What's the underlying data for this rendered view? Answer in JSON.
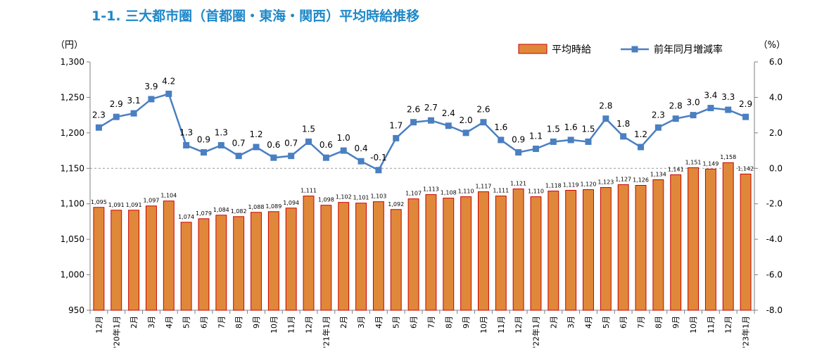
{
  "title": "1-1. 三大都市圏（首都圏・東海・関西）平均時給推移",
  "chart_data": {
    "type": "bar",
    "title": "1-1. 三大都市圏（首都圏・東海・関西）平均時給推移",
    "y_unit": "（円）",
    "y2_unit": "（%）",
    "ylim": [
      950,
      1300
    ],
    "y_ticks": [
      "950",
      "1,000",
      "1,050",
      "1,100",
      "1,150",
      "1,200",
      "1,250",
      "1,300"
    ],
    "y2lim": [
      -8.0,
      6.0
    ],
    "y2_ticks": [
      "-8.0",
      "-6.0",
      "-4.0",
      "-2.0",
      "0.0",
      "2.0",
      "4.0",
      "6.0"
    ],
    "categories": [
      "12月",
      "'20年1月",
      "2月",
      "3月",
      "4月",
      "5月",
      "6月",
      "7月",
      "8月",
      "9月",
      "10月",
      "11月",
      "12月",
      "'21年1月",
      "2月",
      "3月",
      "4月",
      "5月",
      "6月",
      "7月",
      "8月",
      "9月",
      "10月",
      "11月",
      "12月",
      "'22年1月",
      "2月",
      "3月",
      "4月",
      "5月",
      "6月",
      "7月",
      "8月",
      "9月",
      "10月",
      "11月",
      "12月",
      "'23年1月"
    ],
    "series": [
      {
        "name": "平均時給",
        "type": "bar",
        "color": "#e0883a",
        "edge_color": "#cc0000",
        "values": [
          1095,
          1091,
          1091,
          1097,
          1104,
          1074,
          1079,
          1084,
          1082,
          1088,
          1089,
          1094,
          1111,
          1098,
          1102,
          1101,
          1103,
          1092,
          1107,
          1113,
          1108,
          1110,
          1117,
          1111,
          1121,
          1110,
          1118,
          1119,
          1120,
          1123,
          1127,
          1126,
          1134,
          1141,
          1151,
          1149,
          1158,
          1142
        ],
        "labels": [
          "1,095",
          "1,091",
          "1,091",
          "1,097",
          "1,104",
          "1,074",
          "1,079",
          "1,084",
          "1,082",
          "1,088",
          "1,089",
          "1,094",
          "1,111",
          "1,098",
          "1,102",
          "1,101",
          "1,103",
          "1,092",
          "1,107",
          "1,113",
          "1,108",
          "1,110",
          "1,117",
          "1,111",
          "1,121",
          "1,110",
          "1,118",
          "1,119",
          "1,120",
          "1,123",
          "1,127",
          "1,126",
          "1,134",
          "1,141",
          "1,151",
          "1,149",
          "1,158",
          "1,142"
        ]
      },
      {
        "name": "前年同月増減率",
        "type": "line",
        "axis": "right",
        "color": "#4a7fc1",
        "values": [
          2.3,
          2.9,
          3.1,
          3.9,
          4.2,
          1.3,
          0.9,
          1.3,
          0.7,
          1.2,
          0.6,
          0.7,
          1.5,
          0.6,
          1.0,
          0.4,
          -0.1,
          1.7,
          2.6,
          2.7,
          2.4,
          2.0,
          2.6,
          1.6,
          0.9,
          1.1,
          1.5,
          1.6,
          1.5,
          2.8,
          1.8,
          1.2,
          2.3,
          2.8,
          3.0,
          3.4,
          3.3,
          2.9
        ],
        "labels": [
          "2.3",
          "2.9",
          "3.1",
          "3.9",
          "4.2",
          "1.3",
          "0.9",
          "1.3",
          "0.7",
          "1.2",
          "0.6",
          "0.7",
          "1.5",
          "0.6",
          "1.0",
          "0.4",
          "-0.1",
          "1.7",
          "2.6",
          "2.7",
          "2.4",
          "2.0",
          "2.6",
          "1.6",
          "0.9",
          "1.1",
          "1.5",
          "1.6",
          "1.5",
          "2.8",
          "1.8",
          "1.2",
          "2.3",
          "2.8",
          "3.0",
          "3.4",
          "3.3",
          "2.9"
        ]
      }
    ],
    "grid": false,
    "reference_line": 1150,
    "legend_position": "top-right"
  }
}
